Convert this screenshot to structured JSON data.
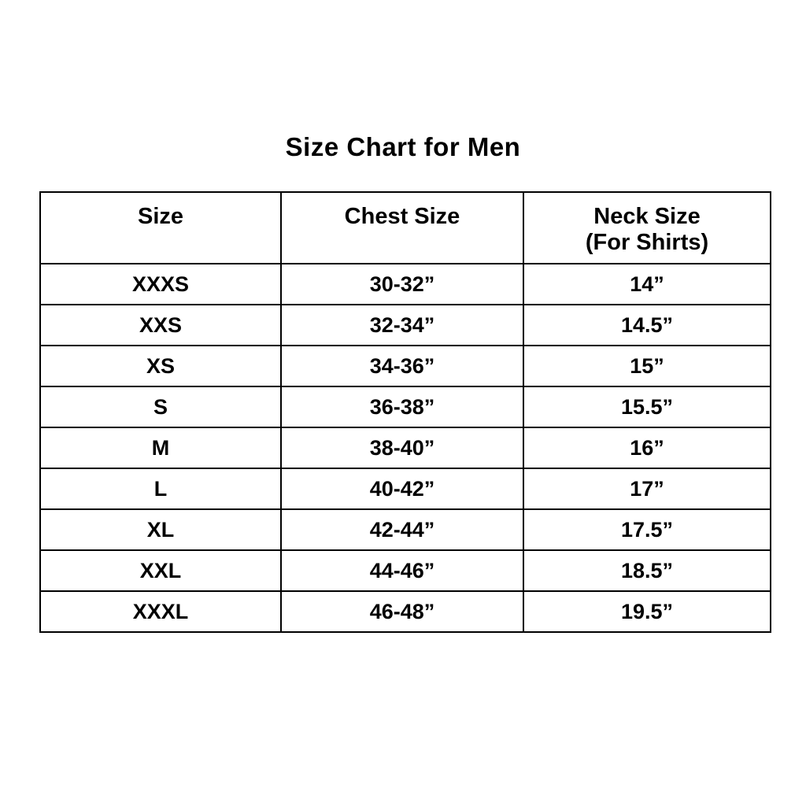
{
  "page": {
    "background_color": "#ffffff",
    "text_color": "#000000",
    "border_color": "#000000"
  },
  "title": "Size Chart for Men",
  "size_chart": {
    "columns": [
      {
        "label": "Size",
        "sublabel": ""
      },
      {
        "label": "Chest Size",
        "sublabel": ""
      },
      {
        "label": "Neck Size",
        "sublabel": "(For Shirts)"
      }
    ],
    "rows": [
      {
        "size": "XXXS",
        "chest": "30-32”",
        "neck": "14”"
      },
      {
        "size": "XXS",
        "chest": "32-34”",
        "neck": "14.5”"
      },
      {
        "size": "XS",
        "chest": "34-36”",
        "neck": "15”"
      },
      {
        "size": "S",
        "chest": "36-38”",
        "neck": "15.5”"
      },
      {
        "size": "M",
        "chest": "38-40”",
        "neck": "16”"
      },
      {
        "size": "L",
        "chest": "40-42”",
        "neck": "17”"
      },
      {
        "size": "XL",
        "chest": "42-44”",
        "neck": "17.5”"
      },
      {
        "size": "XXL",
        "chest": "44-46”",
        "neck": "18.5”"
      },
      {
        "size": "XXXL",
        "chest": "46-48”",
        "neck": "19.5”"
      }
    ]
  },
  "chart_data": {
    "type": "table",
    "title": "Size Chart for Men",
    "columns": [
      "Size",
      "Chest Size",
      "Neck Size (For Shirts)"
    ],
    "rows": [
      [
        "XXXS",
        "30-32”",
        "14”"
      ],
      [
        "XXS",
        "32-34”",
        "14.5”"
      ],
      [
        "XS",
        "34-36”",
        "15”"
      ],
      [
        "S",
        "36-38”",
        "15.5”"
      ],
      [
        "M",
        "38-40”",
        "16”"
      ],
      [
        "L",
        "40-42”",
        "17”"
      ],
      [
        "XL",
        "42-44”",
        "17.5”"
      ],
      [
        "XXL",
        "44-46”",
        "18.5”"
      ],
      [
        "XXXL",
        "46-48”",
        "19.5”"
      ]
    ]
  }
}
